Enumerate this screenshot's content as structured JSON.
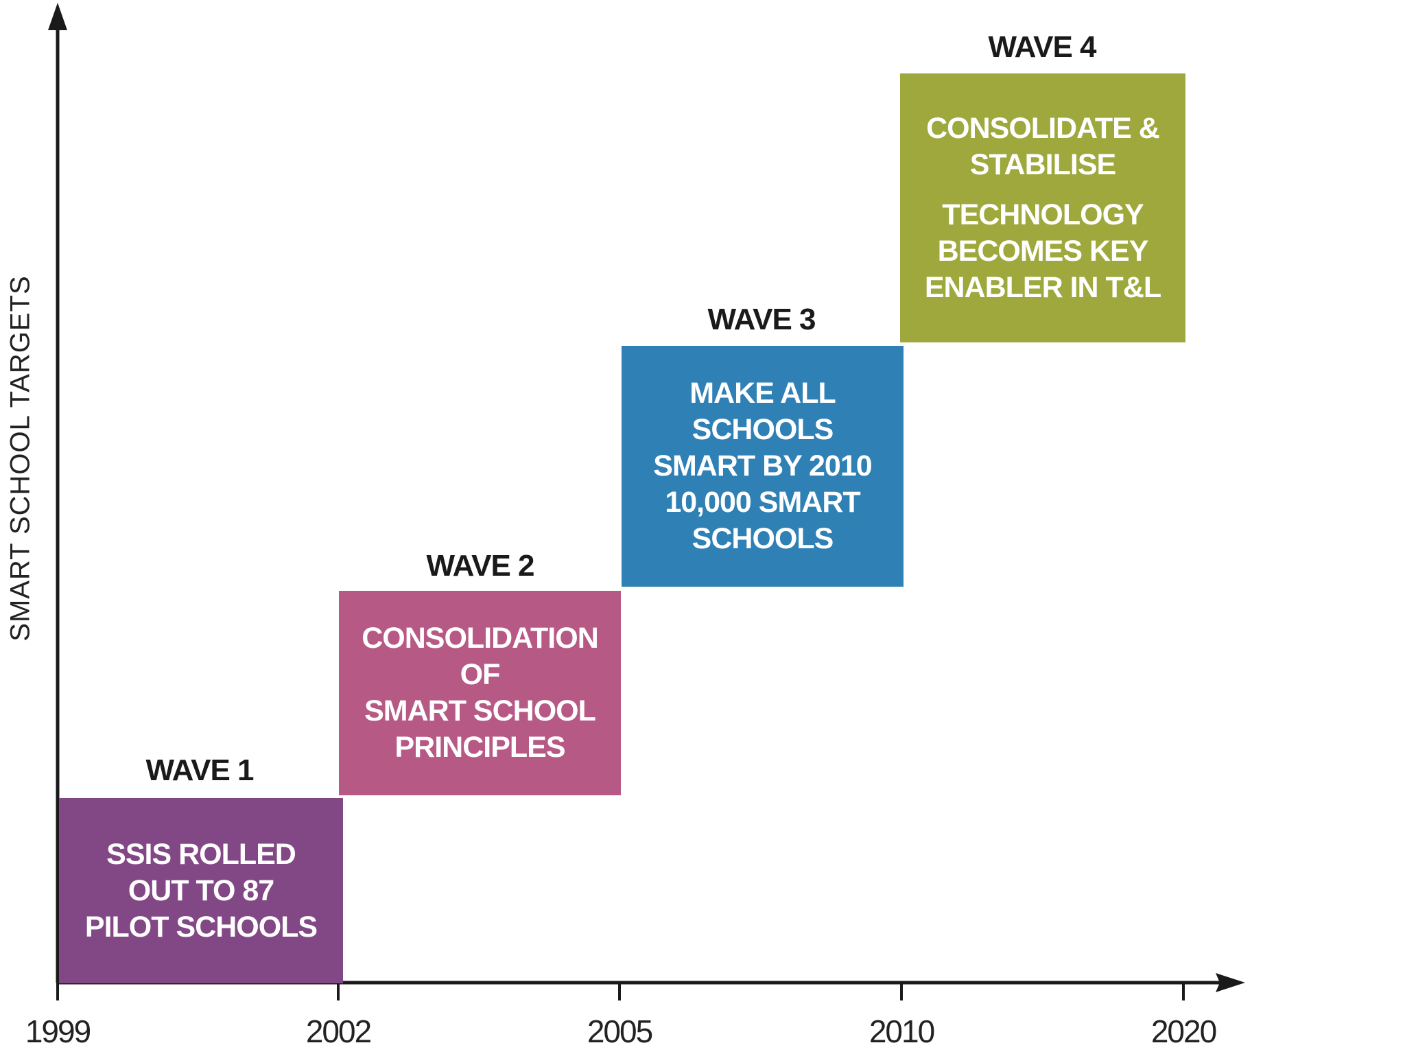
{
  "y_axis_label": "SMART SCHOOL TARGETS",
  "x_ticks": [
    "1999",
    "2002",
    "2005",
    "2010",
    "2020"
  ],
  "waves": [
    {
      "label": "WAVE 1",
      "lines": [
        "SSIS ROLLED",
        "OUT TO 87",
        "PILOT SCHOOLS"
      ],
      "color": "#824785"
    },
    {
      "label": "WAVE 2",
      "lines": [
        "CONSOLIDATION",
        "OF",
        "SMART SCHOOL",
        "PRINCIPLES"
      ],
      "color": "#b65a85"
    },
    {
      "label": "WAVE 3",
      "lines": [
        "MAKE ALL",
        "SCHOOLS",
        "SMART BY 2010",
        "10,000 SMART",
        "SCHOOLS"
      ],
      "color": "#2f80b5"
    },
    {
      "label": "WAVE 4",
      "lines": [
        "CONSOLIDATE &",
        "STABILISE",
        "TECHNOLOGY",
        "BECOMES KEY",
        "ENABLER IN T&L"
      ],
      "color": "#9ea83c"
    }
  ]
}
